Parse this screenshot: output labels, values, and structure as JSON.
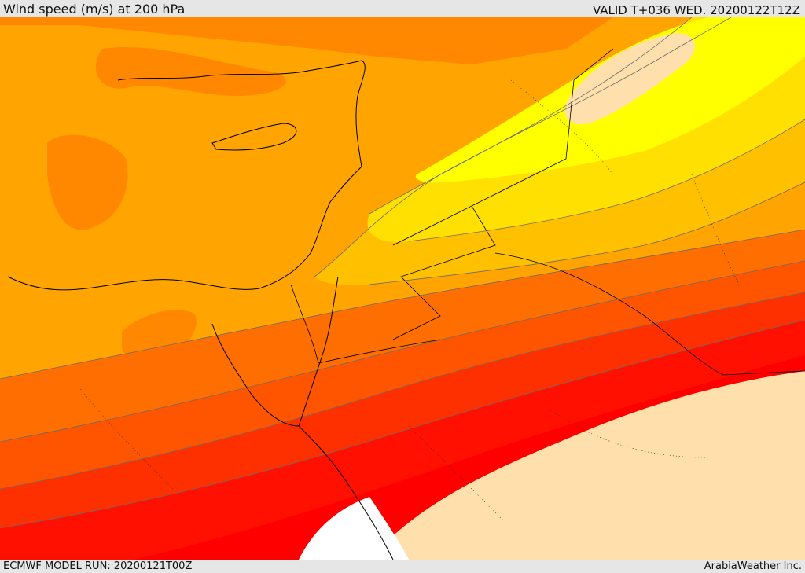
{
  "header": {
    "title": "Wind speed (m/s) at 200 hPa",
    "valid": "VALID T+036 WED. 20200122T12Z"
  },
  "footer": {
    "model_run": "ECMWF MODEL RUN: 20200121T00Z",
    "credit": "ArabiaWeather Inc."
  },
  "map": {
    "field": "wind speed",
    "units": "m/s",
    "level": "200 hPa",
    "colors": {
      "land_low": "#ffdfab",
      "band_yellow": "#ffff00",
      "band_yellow_gold": "#ffe000",
      "band_gold": "#ffc000",
      "band_orange_light": "#ffa400",
      "band_orange": "#ff8800",
      "band_orange_deep": "#ff6e00",
      "band_red_orange": "#ff5400",
      "band_red_2": "#ff3000",
      "band_red": "#ff1000",
      "band_crimson": "#ff0000",
      "no_data": "#ffffff",
      "coastline": "#000000",
      "contour": "#555555"
    }
  }
}
